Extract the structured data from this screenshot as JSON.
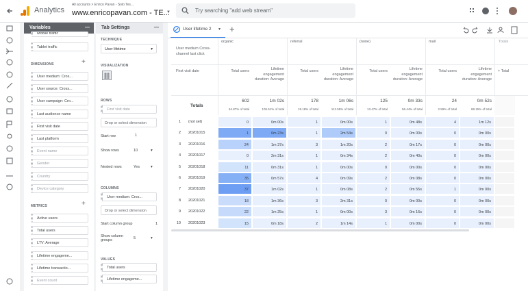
{
  "header": {
    "app_name": "Analytics",
    "breadcrumb": "All accounts > Enrico Pavan - Solo Tes...",
    "property": "www.enricopavan.com - TE...",
    "search_placeholder": "Try searching \"add web stream\""
  },
  "variables_panel": {
    "title": "Variables",
    "segments": [
      "Mobile traffic",
      "Tablet traffic"
    ],
    "dimensions_title": "DIMENSIONS",
    "dimensions": [
      "User medium: Cros...",
      "User source: Cross...",
      "User campaign: Cro...",
      "Last audience name",
      "First visit date",
      "Last platform",
      "Event name",
      "Gender",
      "Country",
      "Device category"
    ],
    "metrics_title": "METRICS",
    "metrics": [
      "Active users",
      "Total users",
      "LTV: Average",
      "Lifetime engageme...",
      "Lifetime transactio...",
      "Event count"
    ]
  },
  "tab_settings": {
    "title": "Tab Settings",
    "technique_label": "TECHNIQUE",
    "technique": "User lifetime",
    "visualization_label": "VISUALIZATION",
    "rows_label": "ROWS",
    "rows_dimension": "First visit date",
    "rows_drop": "Drop or select dimension",
    "start_row_label": "Start row",
    "start_row": "1",
    "show_rows_label": "Show rows",
    "show_rows": "10",
    "nested_rows_label": "Nested rows",
    "nested_rows": "Yes",
    "columns_label": "COLUMNS",
    "columns_dimension": "User medium: Cros...",
    "columns_drop": "Drop or select dimension",
    "start_column_group_label": "Start column group",
    "start_column_group": "1",
    "show_column_groups_label": "Show column groups",
    "show_column_groups": "5",
    "values_label": "VALUES",
    "values": [
      "Total users",
      "Lifetime engageme..."
    ]
  },
  "tab": {
    "name": "User lifetime 2"
  },
  "table": {
    "column_dimension_header": "User medium Cross-channel last click",
    "row_dimension_header": "First visit date",
    "column_groups": [
      "organic",
      "referral",
      "(none)",
      "mail"
    ],
    "totals_column": "Totals",
    "metrics": [
      "Total users",
      "Lifetime engagement duration: Average"
    ],
    "add_total": "+ Total",
    "totals_label": "Totals",
    "totals": [
      [
        "602",
        "64.87% of total"
      ],
      [
        "1m 02s",
        "105.51% of total"
      ],
      [
        "178",
        "19.18% of total"
      ],
      [
        "1m 06s",
        "112.59% of total"
      ],
      [
        "125",
        "13.47% of total"
      ],
      [
        "0m 33s",
        "56.44% of total"
      ],
      [
        "24",
        "2.59% of total"
      ],
      [
        "0m 52s",
        "88.15% of total"
      ]
    ],
    "rows": [
      [
        "1",
        "(not set)",
        "0",
        "0m 00s",
        "1",
        "0m 00s",
        "1",
        "0m 48s",
        "4",
        "1m 12s"
      ],
      [
        "2",
        "20201015",
        "1",
        "6m 23s",
        "1",
        "2m 54s",
        "0",
        "0m 00s",
        "0",
        "0m 00s"
      ],
      [
        "3",
        "20201016",
        "24",
        "1m 37s",
        "3",
        "1m 20s",
        "2",
        "0m 17s",
        "0",
        "0m 00s"
      ],
      [
        "4",
        "20201017",
        "0",
        "2m 31s",
        "1",
        "0m 34s",
        "2",
        "0m 40s",
        "0",
        "0m 00s"
      ],
      [
        "5",
        "20201018",
        "11",
        "0m 31s",
        "1",
        "0m 00s",
        "0",
        "0m 00s",
        "0",
        "0m 00s"
      ],
      [
        "6",
        "20201019",
        "35",
        "0m 57s",
        "4",
        "0m 09s",
        "2",
        "0m 08s",
        "0",
        "0m 00s"
      ],
      [
        "7",
        "20201020",
        "37",
        "1m 02s",
        "1",
        "0m 08s",
        "2",
        "0m 55s",
        "1",
        "0m 00s"
      ],
      [
        "8",
        "20201021",
        "18",
        "1m 36s",
        "3",
        "2m 31s",
        "0",
        "0m 00s",
        "0",
        "0m 00s"
      ],
      [
        "9",
        "20201022",
        "22",
        "1m 25s",
        "1",
        "0m 00s",
        "3",
        "0m 16s",
        "0",
        "0m 00s"
      ],
      [
        "10",
        "20201023",
        "15",
        "0m 18s",
        "2",
        "1m 14s",
        "1",
        "0m 00s",
        "0",
        "0m 00s"
      ]
    ]
  }
}
